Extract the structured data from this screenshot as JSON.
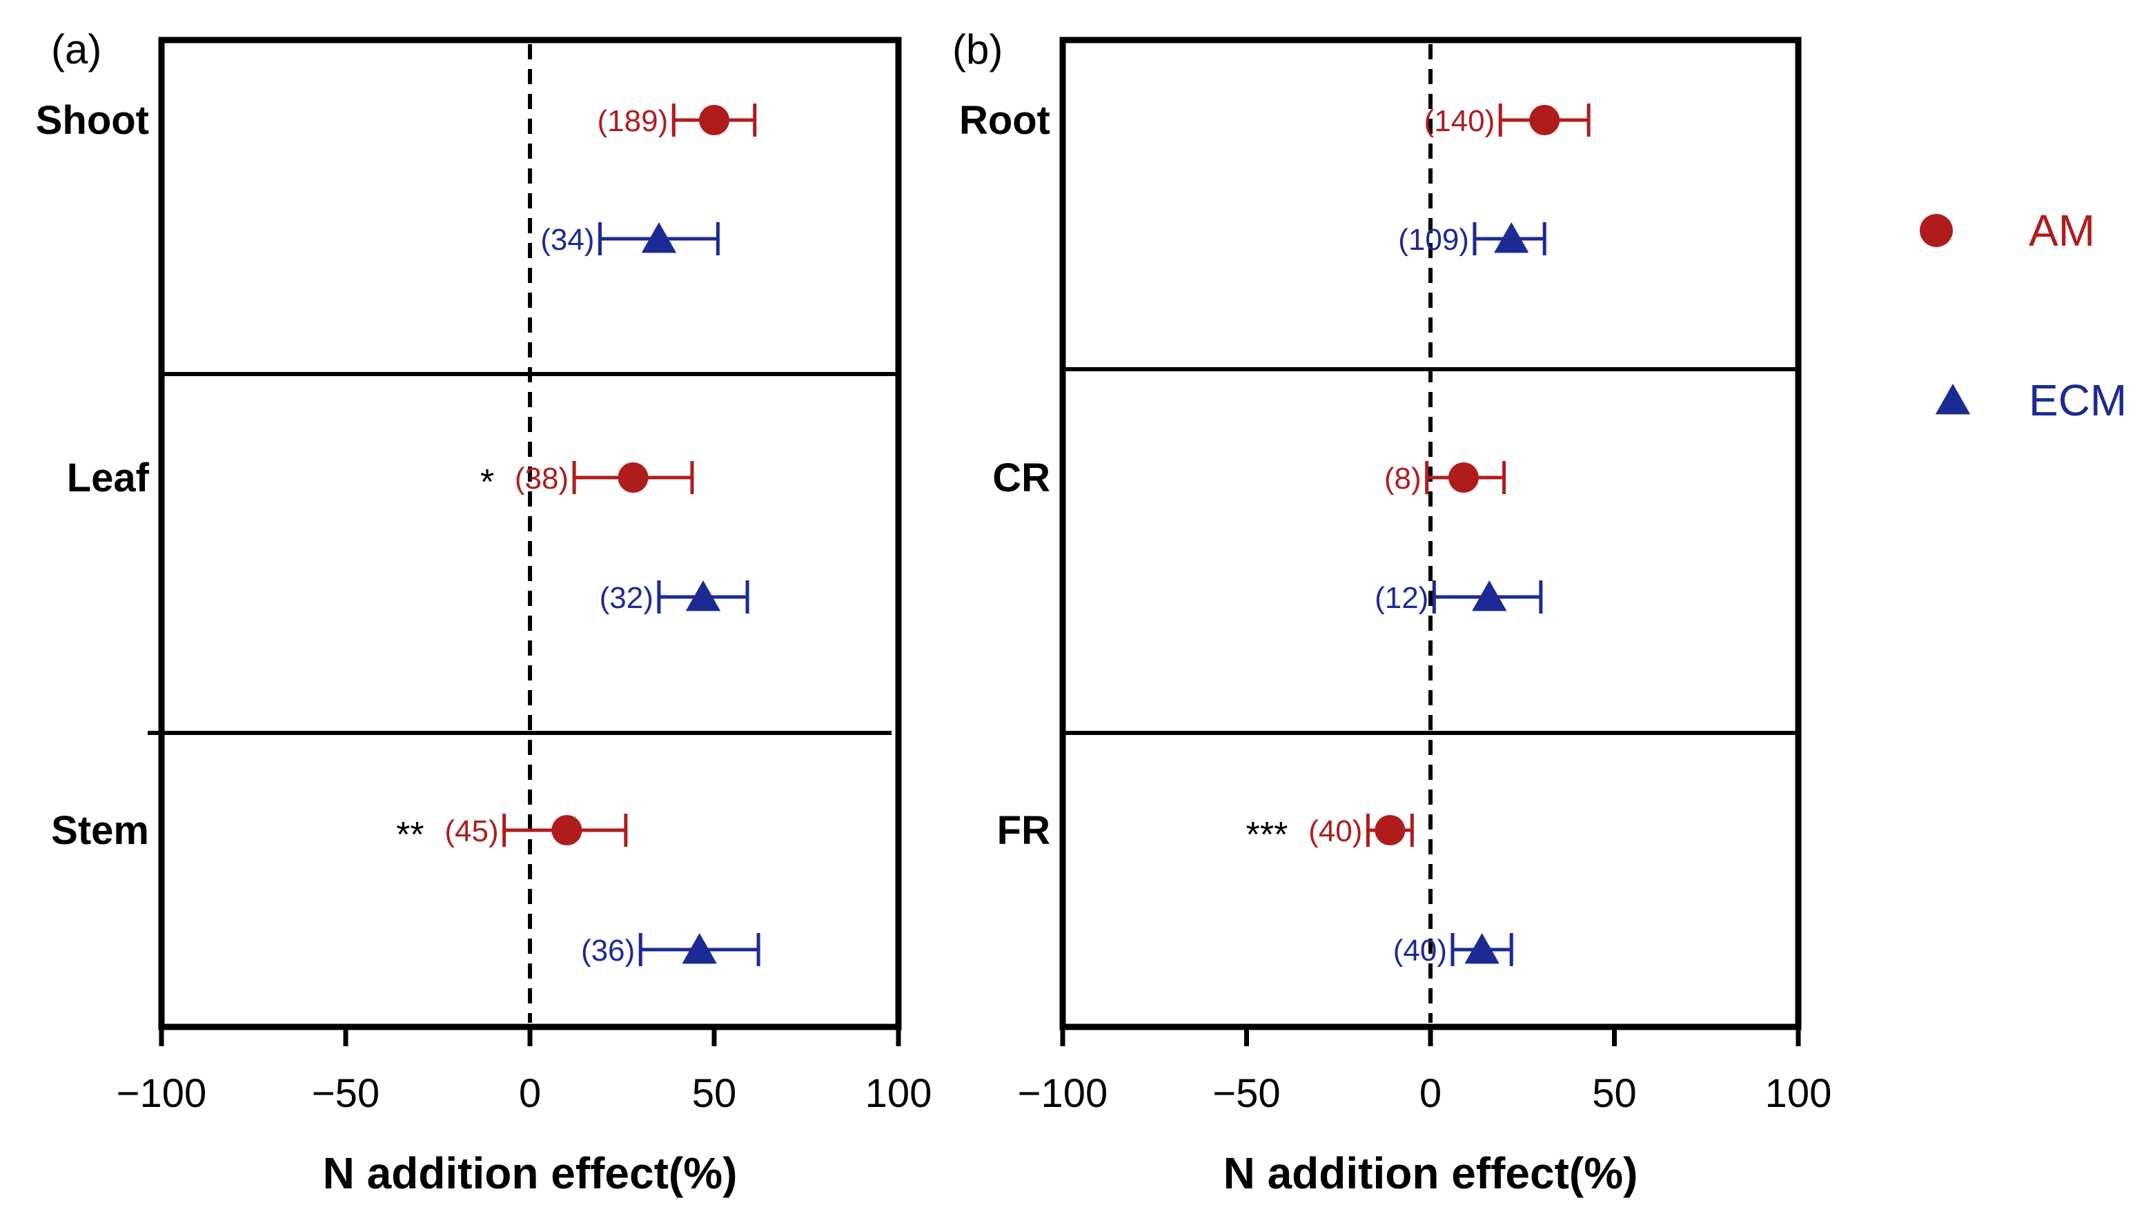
{
  "chart_data": {
    "type": "forest-plot",
    "xlabel": "N addition effect(%)",
    "xlim": [
      -100,
      100
    ],
    "xticks": [
      -100,
      -50,
      0,
      50,
      100
    ],
    "xtick_labels": [
      "−100",
      "−50",
      "0",
      "50",
      "100"
    ],
    "reference_line": 0,
    "legend": [
      {
        "name": "AM",
        "marker": "circle",
        "color": "#b01c1c"
      },
      {
        "name": "ECM",
        "marker": "triangle",
        "color": "#1c2a94"
      }
    ],
    "panels": [
      {
        "label": "(a)",
        "rows": [
          {
            "name": "Shoot",
            "points": [
              {
                "group": "AM",
                "mean": 50,
                "low": 39,
                "high": 61,
                "n": "(189)",
                "sig": ""
              },
              {
                "group": "ECM",
                "mean": 35,
                "low": 19,
                "high": 51,
                "n": "(34)",
                "sig": ""
              }
            ]
          },
          {
            "name": "Leaf",
            "points": [
              {
                "group": "AM",
                "mean": 28,
                "low": 12,
                "high": 44,
                "n": "(38)",
                "sig": "*"
              },
              {
                "group": "ECM",
                "mean": 47,
                "low": 35,
                "high": 59,
                "n": "(32)",
                "sig": ""
              }
            ]
          },
          {
            "name": "Stem",
            "points": [
              {
                "group": "AM",
                "mean": 10,
                "low": -7,
                "high": 26,
                "n": "(45)",
                "sig": "**"
              },
              {
                "group": "ECM",
                "mean": 46,
                "low": 30,
                "high": 62,
                "n": "(36)",
                "sig": ""
              }
            ]
          }
        ]
      },
      {
        "label": "(b)",
        "rows": [
          {
            "name": "Root",
            "points": [
              {
                "group": "AM",
                "mean": 31,
                "low": 19,
                "high": 43,
                "n": "(140)",
                "sig": ""
              },
              {
                "group": "ECM",
                "mean": 22,
                "low": 12,
                "high": 31,
                "n": "(109)",
                "sig": ""
              }
            ]
          },
          {
            "name": "CR",
            "points": [
              {
                "group": "AM",
                "mean": 9,
                "low": -1,
                "high": 20,
                "n": "(8)",
                "sig": ""
              },
              {
                "group": "ECM",
                "mean": 16,
                "low": 1,
                "high": 30,
                "n": "(12)",
                "sig": ""
              }
            ]
          },
          {
            "name": "FR",
            "points": [
              {
                "group": "AM",
                "mean": -11,
                "low": -17,
                "high": -5,
                "n": "(40)",
                "sig": "***"
              },
              {
                "group": "ECM",
                "mean": 14,
                "low": 6,
                "high": 22,
                "n": "(40)",
                "sig": ""
              }
            ]
          }
        ]
      }
    ]
  }
}
